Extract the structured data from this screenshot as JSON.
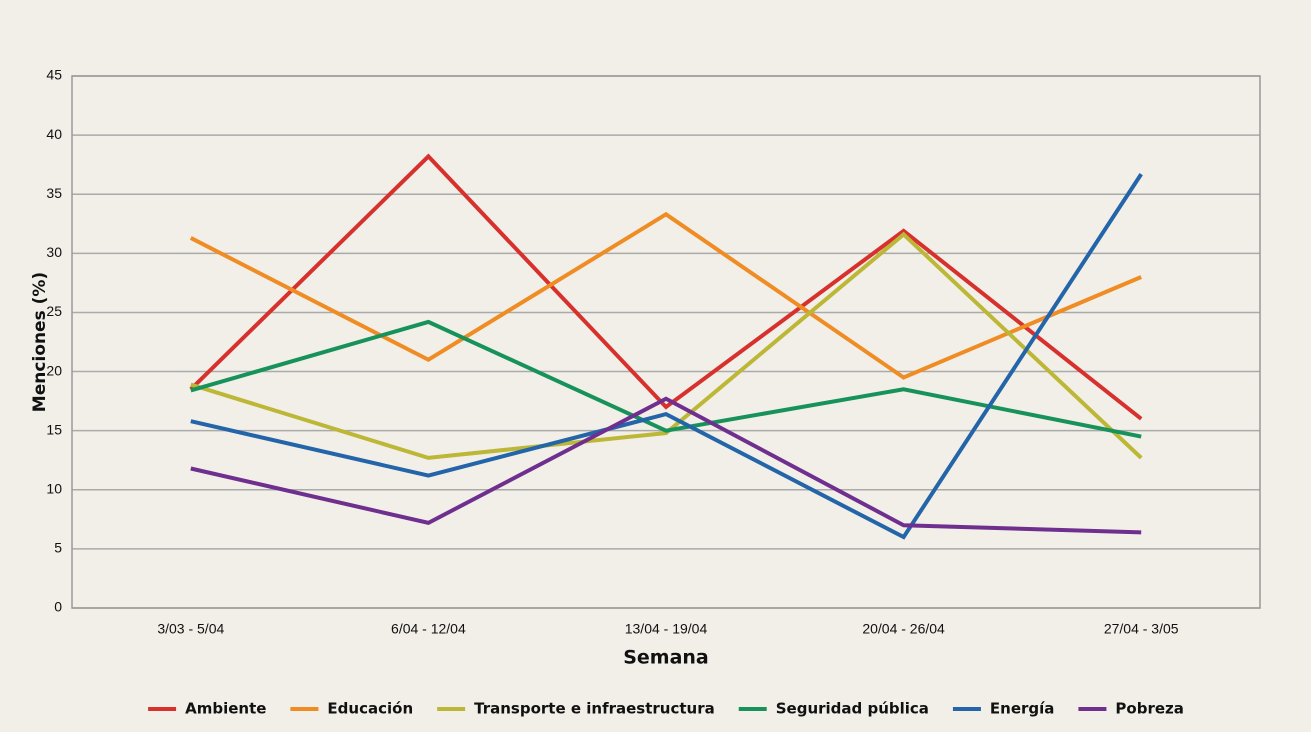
{
  "chart_data": {
    "type": "line",
    "x_label": "Semana",
    "y_label": "Menciones (%)",
    "categories": [
      "3/03 - 5/04",
      "6/04 - 12/04",
      "13/04 - 19/04",
      "20/04 - 26/04",
      "27/04 - 3/05"
    ],
    "series": [
      {
        "name": "Ambiente",
        "color": "#d7312e",
        "values": [
          18.5,
          38.2,
          17,
          31.9,
          16
        ]
      },
      {
        "name": "Educación",
        "color": "#ef8c23",
        "values": [
          31.3,
          21,
          33.3,
          19.5,
          28
        ]
      },
      {
        "name": "Transporte e infraestructura",
        "color": "#bcb737",
        "values": [
          18.9,
          12.7,
          14.8,
          31.6,
          12.7
        ]
      },
      {
        "name": "Seguridad pública",
        "color": "#16925a",
        "values": [
          18.4,
          24.2,
          15,
          18.5,
          14.5
        ]
      },
      {
        "name": "Energía",
        "color": "#2365a8",
        "values": [
          15.8,
          11.2,
          16.4,
          6,
          36.7
        ]
      },
      {
        "name": "Pobreza",
        "color": "#6f2f8f",
        "values": [
          11.8,
          7.2,
          17.7,
          7,
          6.4
        ]
      }
    ],
    "ylim": [
      0,
      45
    ],
    "yticks": [
      0,
      5,
      10,
      15,
      20,
      25,
      30,
      35,
      40,
      45
    ],
    "grid": true,
    "legend": "bottom"
  }
}
